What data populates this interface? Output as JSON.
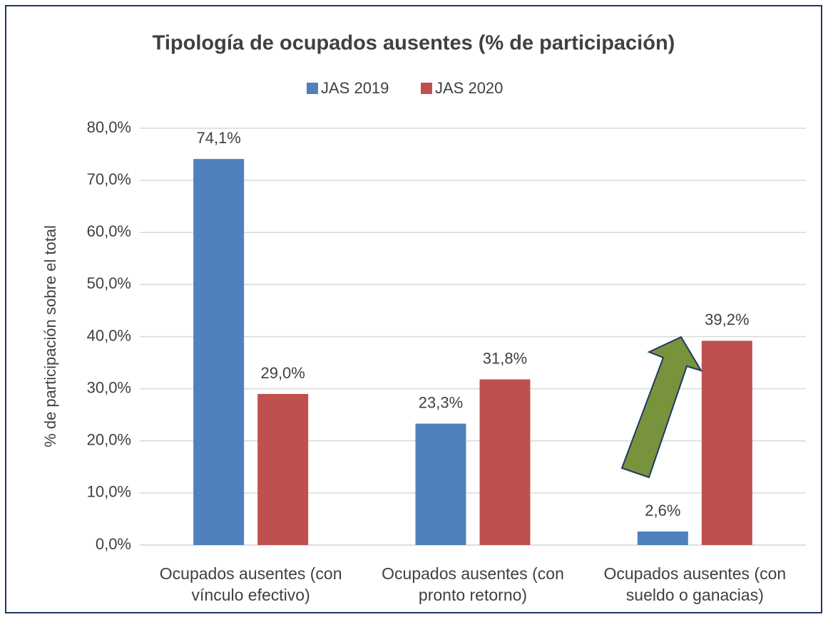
{
  "chart_data": {
    "type": "bar",
    "title": "Tipología de ocupados ausentes (% de participación)",
    "y_label": "% de participación sobre el total",
    "categories": [
      "Ocupados ausentes (con vínculo efectivo)",
      "Ocupados ausentes (con pronto retorno)",
      "Ocupados ausentes (con sueldo o ganacias)"
    ],
    "series": [
      {
        "name": "JAS 2019",
        "color": "#4f81bd",
        "values": [
          74.1,
          23.3,
          2.6
        ],
        "value_labels": [
          "74,1%",
          "23,3%",
          "2,6%"
        ]
      },
      {
        "name": "JAS 2020",
        "color": "#c0504d",
        "values": [
          29.0,
          31.8,
          39.2
        ],
        "value_labels": [
          "29,0%",
          "31,8%",
          "39,2%"
        ]
      }
    ],
    "ylim": [
      0,
      80
    ],
    "yticks": [
      {
        "value": 0,
        "label": "0,0%"
      },
      {
        "value": 10,
        "label": "10,0%"
      },
      {
        "value": 20,
        "label": "20,0%"
      },
      {
        "value": 30,
        "label": "30,0%"
      },
      {
        "value": 40,
        "label": "40,0%"
      },
      {
        "value": 50,
        "label": "50,0%"
      },
      {
        "value": 60,
        "label": "60,0%"
      },
      {
        "value": 70,
        "label": "70,0%"
      },
      {
        "value": 80,
        "label": "80,0%"
      }
    ],
    "grid": true,
    "legend": "top"
  }
}
